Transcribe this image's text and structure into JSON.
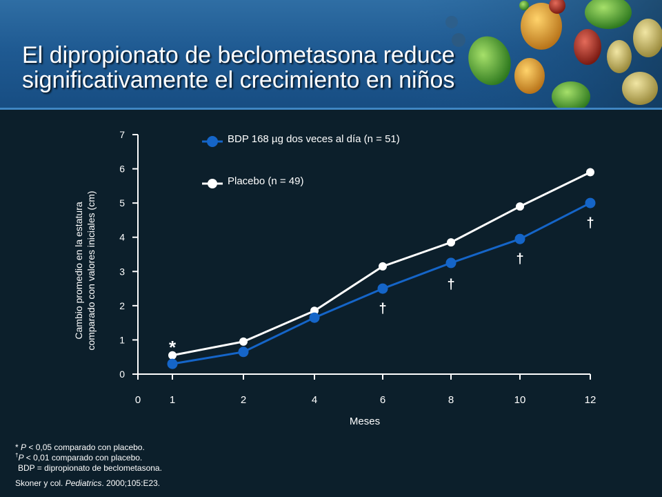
{
  "slide": {
    "title_line1": "El dipropionato de beclometasona reduce",
    "title_line2": "significativamente el crecimiento en niños",
    "footnotes": {
      "fn1_mark": "*",
      "fn1_p": "P",
      "fn1_text": " < 0,05 comparado con placebo.",
      "fn2_mark": "†",
      "fn2_p": "P",
      "fn2_text": " < 0,01 comparado con placebo.",
      "fn3": "BDP = dipropionato de beclometasona.",
      "cite_prefix": "Skoner y col. ",
      "cite_journal": "Pediatrics",
      "cite_suffix": ". 2000;105:E23."
    }
  },
  "colors": {
    "background": "#0c1f2b",
    "banner": "#1f5a92",
    "bdp": "#1565c8",
    "placebo": "#ffffff",
    "text": "#ffffff"
  },
  "chart_data": {
    "type": "line",
    "xlabel": "Meses",
    "ylabel_line1": "Cambio promedio en la estatura",
    "ylabel_line2": "comparado con valores iniciales (cm)",
    "categories": [
      "0",
      "1",
      "2",
      "4",
      "6",
      "8",
      "10",
      "12"
    ],
    "ylim": [
      0,
      7
    ],
    "yticks": [
      "0",
      "1",
      "2",
      "3",
      "4",
      "5",
      "6",
      "7"
    ],
    "legend_position": "top-left",
    "series": [
      {
        "name": "BDP 168 µg dos veces al día (n = 51)",
        "x": [
          "1",
          "2",
          "4",
          "6",
          "8",
          "10",
          "12"
        ],
        "values": [
          0.3,
          0.65,
          1.65,
          2.5,
          3.25,
          3.95,
          5.0
        ],
        "color": "#1565c8"
      },
      {
        "name": "Placebo (n = 49)",
        "x": [
          "1",
          "2",
          "4",
          "6",
          "8",
          "10",
          "12"
        ],
        "values": [
          0.55,
          0.95,
          1.85,
          3.15,
          3.85,
          4.9,
          5.9
        ],
        "color": "#ffffff"
      }
    ],
    "annotations": [
      {
        "text": "*",
        "x": "1",
        "y": 0.85
      },
      {
        "text": "†",
        "x": "6",
        "y": 1.95
      },
      {
        "text": "†",
        "x": "8",
        "y": 2.65
      },
      {
        "text": "†",
        "x": "10",
        "y": 3.4
      },
      {
        "text": "†",
        "x": "12",
        "y": 4.45
      }
    ]
  }
}
